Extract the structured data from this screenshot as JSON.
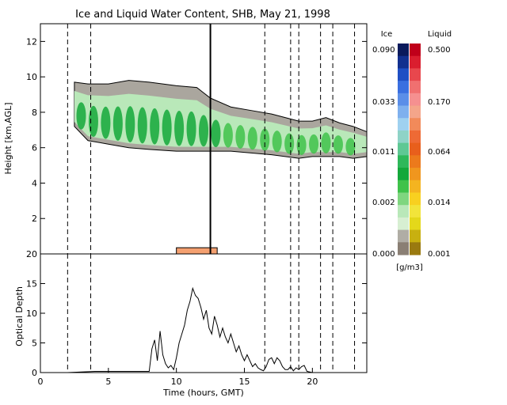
{
  "title": "Ice and Liquid Water Content, SHB, May 21, 1998",
  "chart_data": [
    {
      "type": "heatmap",
      "title": "Ice and Liquid Water Content, SHB, May 21, 1998",
      "ylabel": "Height [km,AGL]",
      "xlim": [
        0,
        24
      ],
      "ylim": [
        0,
        13
      ],
      "yticks": [
        2,
        4,
        6,
        8,
        10,
        12
      ],
      "vertical_dashed_lines_hours": [
        2.0,
        3.7,
        16.5,
        18.4,
        19.0,
        20.6,
        21.5,
        23.1
      ],
      "vertical_solid_line_hour": 12.5,
      "ice_cloud_layer": {
        "hours": [
          2.5,
          3.5,
          5,
          6.5,
          8,
          10,
          11.5,
          12.5,
          14,
          15.5,
          17,
          18,
          19,
          20,
          21,
          22,
          23,
          24
        ],
        "top_km": [
          9.7,
          9.6,
          9.6,
          9.8,
          9.7,
          9.5,
          9.4,
          8.8,
          8.3,
          8.1,
          7.9,
          7.7,
          7.5,
          7.5,
          7.7,
          7.4,
          7.2,
          6.9
        ],
        "base_km": [
          7.2,
          6.4,
          6.2,
          6.0,
          5.9,
          5.8,
          5.8,
          5.8,
          5.8,
          5.7,
          5.6,
          5.5,
          5.4,
          5.5,
          5.5,
          5.5,
          5.4,
          5.5
        ]
      },
      "liquid_layer": {
        "hours": [
          10.0,
          13.0
        ],
        "top_km": 0.35,
        "base_km": 0.0
      },
      "colorbar": {
        "ice_label": "Ice",
        "liquid_label": "Liquid",
        "units": "[g/m3]",
        "ice_ticks": [
          "0.090",
          "0.033",
          "0.011",
          "0.002",
          "0.000"
        ],
        "liquid_ticks": [
          "0.500",
          "0.170",
          "0.064",
          "0.014",
          "0.001"
        ],
        "ice_colors": [
          "#0a1a5c",
          "#12308f",
          "#1f4fc4",
          "#3a6fe0",
          "#5b8ee8",
          "#7fb0ee",
          "#9fd1f0",
          "#8fd3c7",
          "#5fc894",
          "#2fb85a",
          "#14a83a",
          "#3fc24a",
          "#7fd67f",
          "#b9e8b9",
          "#d7efd2",
          "#b0ada5",
          "#8a7f74"
        ],
        "liquid_colors": [
          "#c0001a",
          "#da1e2f",
          "#e8474d",
          "#f07070",
          "#f59090",
          "#f4a58a",
          "#f28a5a",
          "#ee6a35",
          "#e85f1c",
          "#ec7a1c",
          "#f0961e",
          "#f4b420",
          "#f8d020",
          "#f2e43a",
          "#e4d81a",
          "#c8b010",
          "#9a7a10"
        ]
      }
    },
    {
      "type": "line",
      "ylabel": "Optical Depth",
      "xlabel": "Time (hours, GMT)",
      "xlim": [
        0,
        24
      ],
      "ylim": [
        0,
        20
      ],
      "xticks": [
        0,
        5,
        10,
        15,
        20
      ],
      "yticks": [
        0,
        5,
        10,
        15,
        20
      ],
      "series": [
        {
          "x": [
            0,
            2,
            4,
            6,
            8,
            8.2,
            8.4,
            8.6,
            8.8,
            9.0,
            9.2,
            9.4,
            9.6,
            9.8,
            10.0,
            10.2,
            10.4,
            10.6,
            10.8,
            11.0,
            11.2,
            11.4,
            11.6,
            11.8,
            12.0,
            12.2,
            12.4,
            12.6,
            12.8,
            13.0,
            13.2,
            13.4,
            13.6,
            13.8,
            14.0,
            14.2,
            14.4,
            14.6,
            14.8,
            15.0,
            15.2,
            15.4,
            15.6,
            15.8,
            16.0,
            16.2,
            16.4,
            16.6,
            16.8,
            17.0,
            17.2,
            17.4,
            17.6,
            17.8,
            18.0,
            18.2,
            18.4,
            18.6,
            18.8,
            19.0,
            19.2,
            19.4,
            19.6,
            19.8,
            20.0,
            21,
            22,
            23,
            24
          ],
          "y": [
            0,
            0,
            0.2,
            0.2,
            0.2,
            4.0,
            5.5,
            2.0,
            7.0,
            3.0,
            1.5,
            0.8,
            1.2,
            0.5,
            2.5,
            5.0,
            6.5,
            8.0,
            10.5,
            12.0,
            14.2,
            13.0,
            12.5,
            11.0,
            9.0,
            10.5,
            7.5,
            6.5,
            9.5,
            8.0,
            6.0,
            7.5,
            6.0,
            5.0,
            6.5,
            5.0,
            3.5,
            4.5,
            3.0,
            2.0,
            3.0,
            2.0,
            1.0,
            1.5,
            0.8,
            0.5,
            0.3,
            1.0,
            2.2,
            2.5,
            1.5,
            2.5,
            2.0,
            1.0,
            0.5,
            0.5,
            1.0,
            0.3,
            0.8,
            0.5,
            1.0,
            1.2,
            0.2,
            0.1,
            0.0,
            0,
            0,
            0,
            0
          ]
        }
      ]
    }
  ]
}
